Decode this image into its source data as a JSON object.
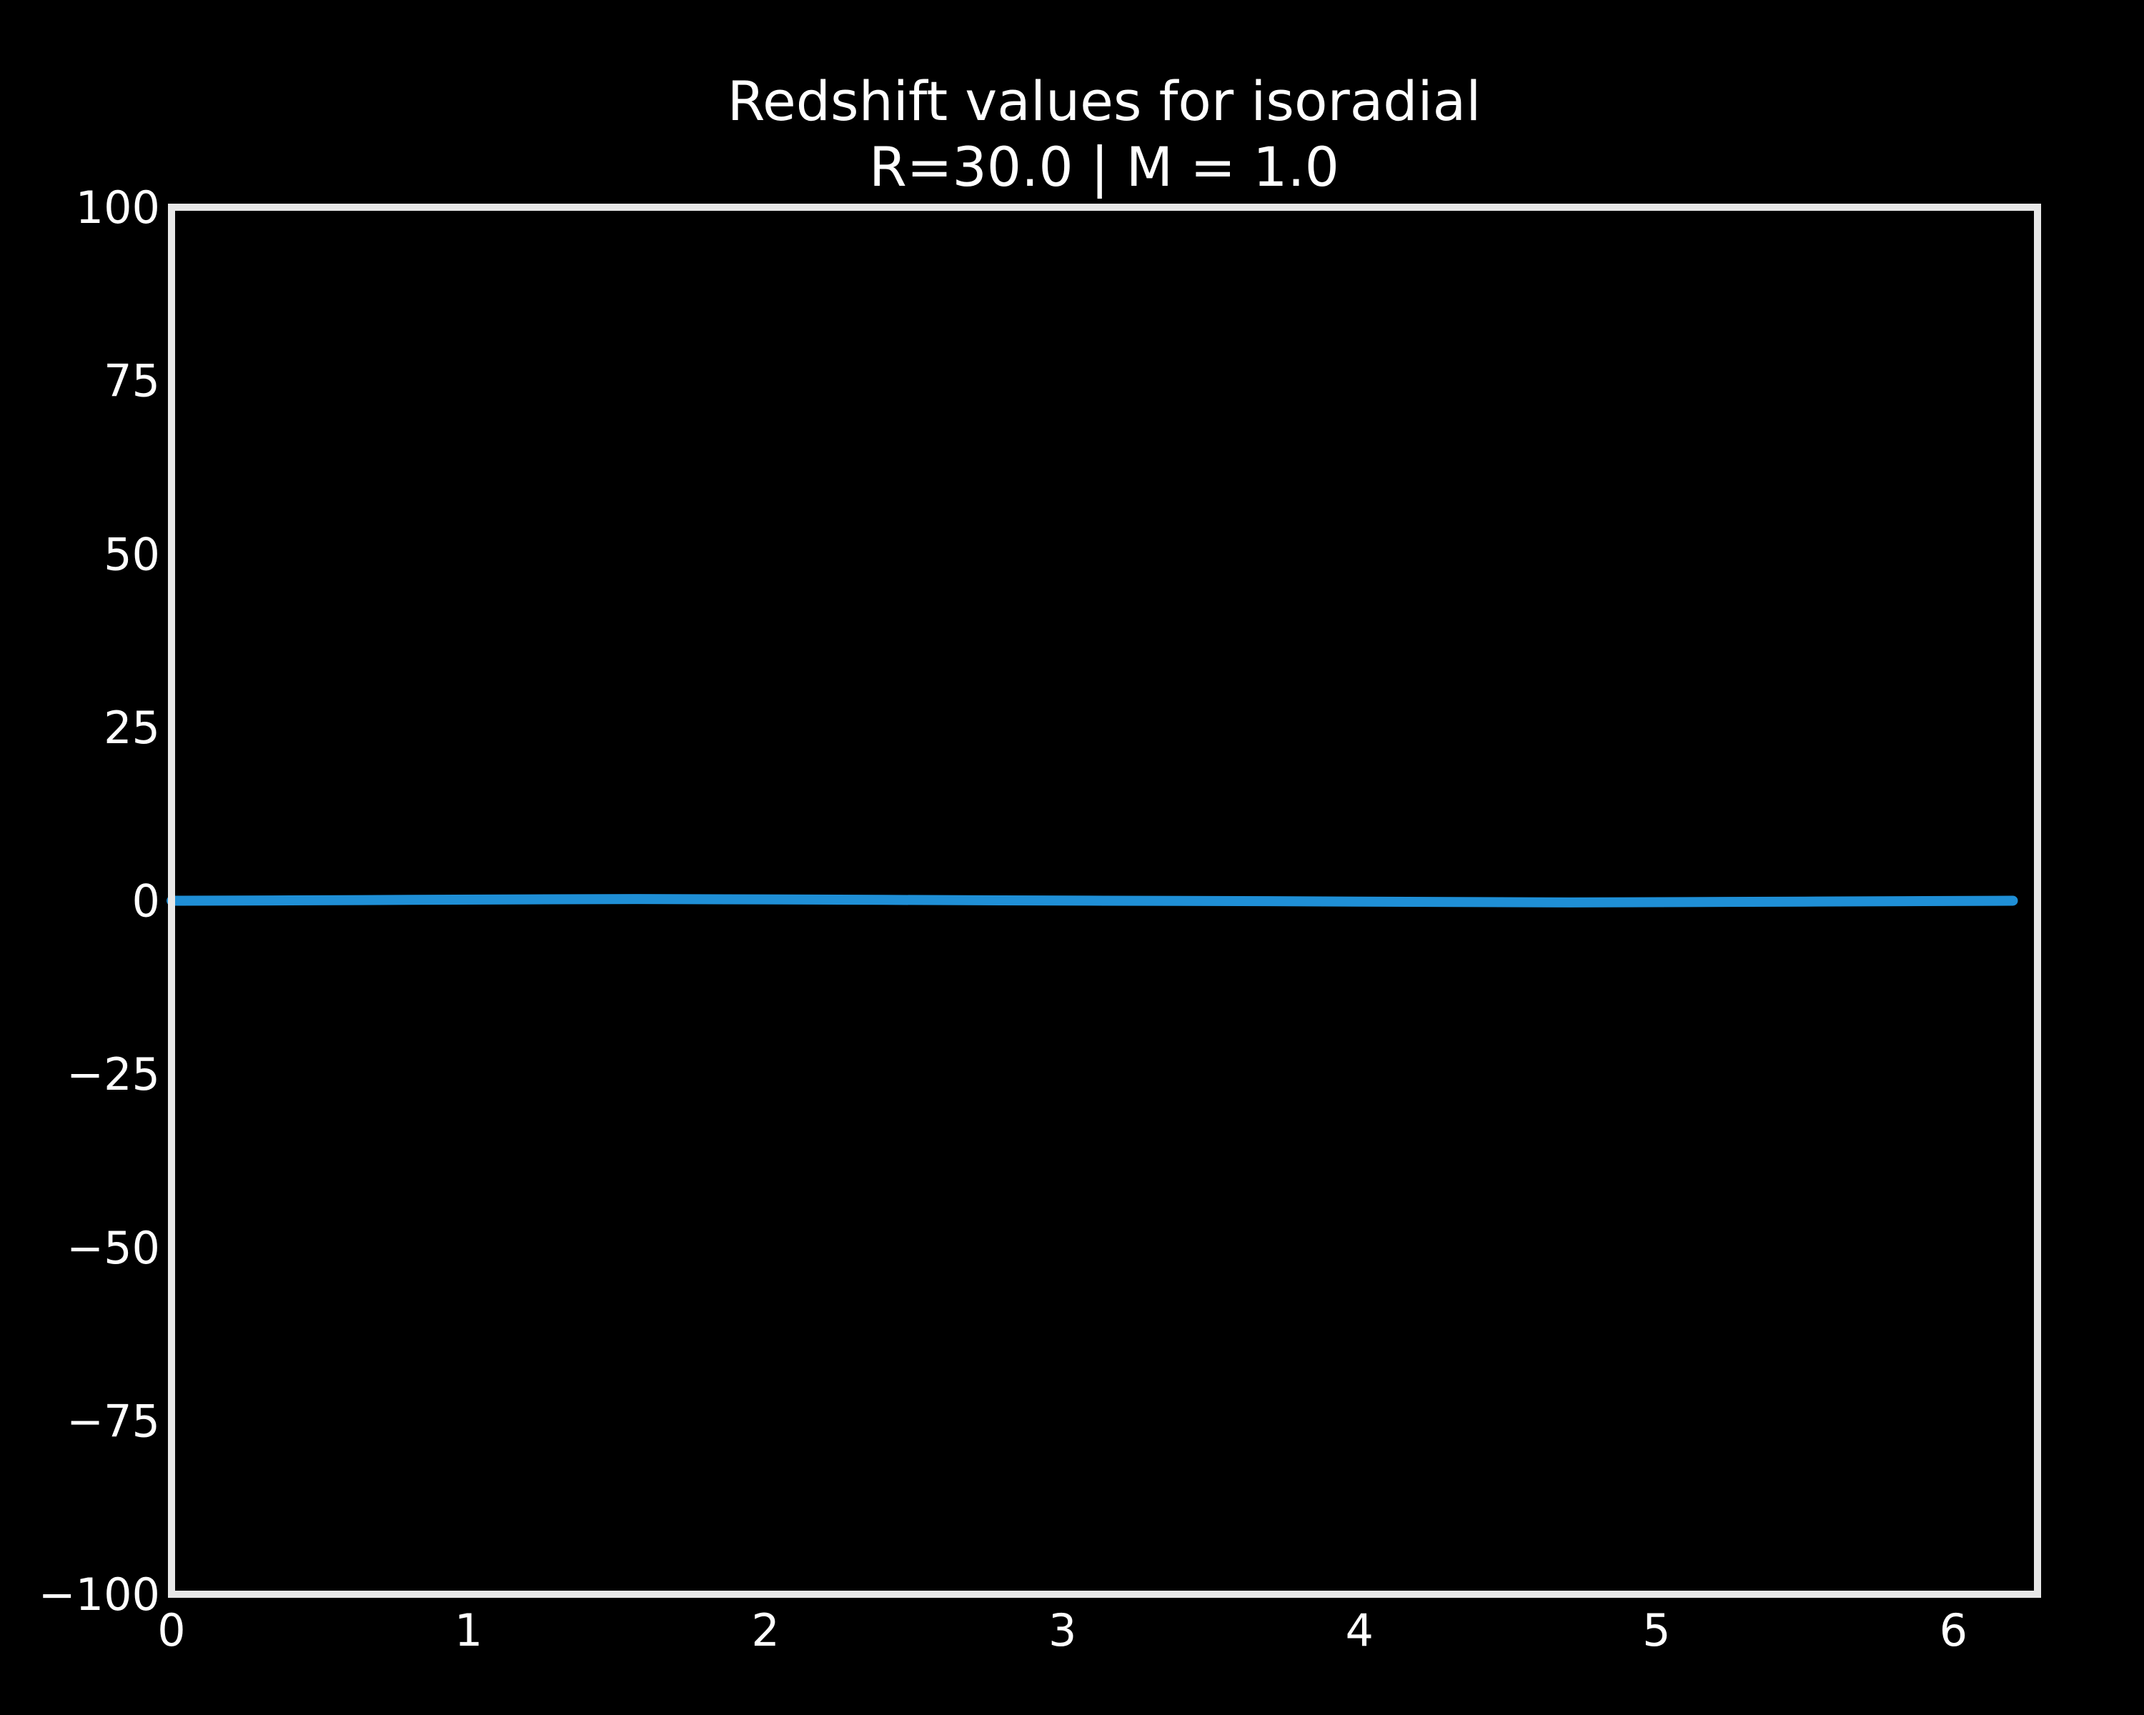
{
  "chart_data": {
    "type": "line",
    "title": "Redshift values for isoradial",
    "subtitle": "R=30.0 | M = 1.0",
    "xlabel": "",
    "ylabel": "",
    "xlim": [
      0,
      6.283
    ],
    "ylim": [
      -100,
      100
    ],
    "grid": false,
    "x_ticks": [
      0,
      1,
      2,
      3,
      4,
      5,
      6
    ],
    "x_tick_labels": [
      "0",
      "1",
      "2",
      "3",
      "4",
      "5",
      "6"
    ],
    "y_ticks": [
      100,
      75,
      50,
      25,
      0,
      -25,
      -50,
      -75,
      -100
    ],
    "y_tick_labels": [
      "100",
      "75",
      "50",
      "25",
      "0",
      "−25",
      "−50",
      "−75",
      "−100"
    ],
    "series": [
      {
        "color": "#1f8fd6",
        "x": [
          0,
          0.4,
          0.8,
          1.2,
          1.57,
          2.0,
          2.4,
          2.8,
          3.14,
          3.6,
          4.0,
          4.4,
          4.71,
          5.1,
          5.5,
          5.9,
          6.2
        ],
        "y": [
          0,
          0.05,
          0.12,
          0.2,
          0.25,
          0.2,
          0.12,
          0.05,
          0,
          -0.05,
          -0.12,
          -0.2,
          -0.25,
          -0.2,
          -0.12,
          -0.05,
          0
        ]
      }
    ],
    "colors": {
      "background": "#000000",
      "axes": "#e8e8e8",
      "text": "#ffffff"
    }
  }
}
